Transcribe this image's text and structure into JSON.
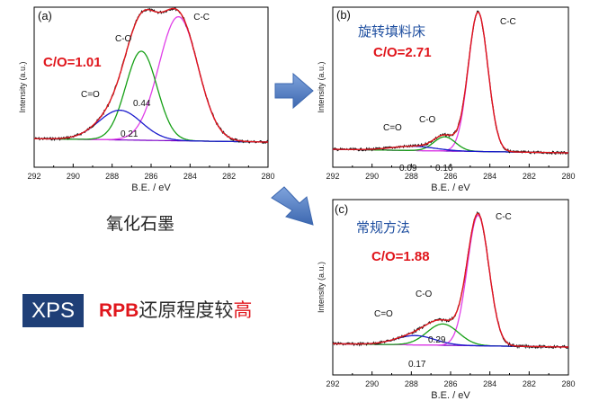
{
  "chart_data": [
    {
      "id": "a",
      "type": "line",
      "panel_label": "(a)",
      "xlabel": "B.E. / eV",
      "ylabel": "Intensity (a.u.)",
      "xlim": [
        292,
        280
      ],
      "xticks": [
        "292",
        "290",
        "288",
        "286",
        "284",
        "282",
        "280"
      ],
      "ratio_label": "C/O=1.01",
      "peak_labels": [
        "C-C",
        "C-O",
        "C=O"
      ],
      "area_labels": [
        "0.44",
        "0.21"
      ],
      "series": [
        {
          "component": "C-C",
          "color": "#e040e8",
          "center": 284.6,
          "width": 1.0,
          "height": 0.92
        },
        {
          "component": "C-O",
          "color": "#16a016",
          "center": 286.5,
          "width": 0.8,
          "height": 0.66
        },
        {
          "component": "C=O",
          "color": "#1a1acc",
          "center": 287.6,
          "width": 1.1,
          "height": 0.22
        }
      ],
      "sample_name": "氧化石墨"
    },
    {
      "id": "b",
      "type": "line",
      "panel_label": "(b)",
      "xlabel": "B.E. / eV",
      "ylabel": "Intensity (a.u.)",
      "xlim": [
        292,
        280
      ],
      "xticks": [
        "292",
        "290",
        "288",
        "286",
        "284",
        "282",
        "280"
      ],
      "ratio_label": "C/O=2.71",
      "method": "旋转填料床",
      "peak_labels": [
        "C-C",
        "C-O",
        "C=O"
      ],
      "area_labels": [
        "0.09",
        "0.16"
      ],
      "series": [
        {
          "component": "C-C",
          "color": "#e040e8",
          "center": 284.6,
          "width": 0.5,
          "height": 0.98
        },
        {
          "component": "C-O",
          "color": "#16a016",
          "center": 286.3,
          "width": 0.55,
          "height": 0.1
        },
        {
          "component": "C=O",
          "color": "#1a1acc",
          "center": 287.9,
          "width": 1.1,
          "height": 0.03
        }
      ]
    },
    {
      "id": "c",
      "type": "line",
      "panel_label": "(c)",
      "xlabel": "B.E. / eV",
      "ylabel": "Intensity (a.u.)",
      "xlim": [
        292,
        280
      ],
      "xticks": [
        "292",
        "290",
        "288",
        "286",
        "284",
        "282",
        "280"
      ],
      "ratio_label": "C/O=1.88",
      "method": "常规方法",
      "peak_labels": [
        "C-C",
        "C-O",
        "C=O"
      ],
      "area_labels": [
        "0.29",
        "0.17"
      ],
      "series": [
        {
          "component": "C-C",
          "color": "#e040e8",
          "center": 284.6,
          "width": 0.55,
          "height": 0.98
        },
        {
          "component": "C-O",
          "color": "#16a016",
          "center": 286.4,
          "width": 0.8,
          "height": 0.16
        },
        {
          "component": "C=O",
          "color": "#1a1acc",
          "center": 287.8,
          "width": 1.0,
          "height": 0.07
        }
      ]
    }
  ],
  "footer": {
    "badge": "XPS",
    "note_rpb": "RPB",
    "note_mid": "还原程度较",
    "note_high": "高"
  },
  "colors": {
    "experimental": "#101010",
    "fit": "#e0161c",
    "c_c": "#e040e8",
    "c_o": "#16a016",
    "c_eq_o": "#1a1acc",
    "baseline": "#7a00c8",
    "arrow": "#5b82c4",
    "ratio_text": "#e0161c",
    "method_text": "#1f4fa0"
  }
}
